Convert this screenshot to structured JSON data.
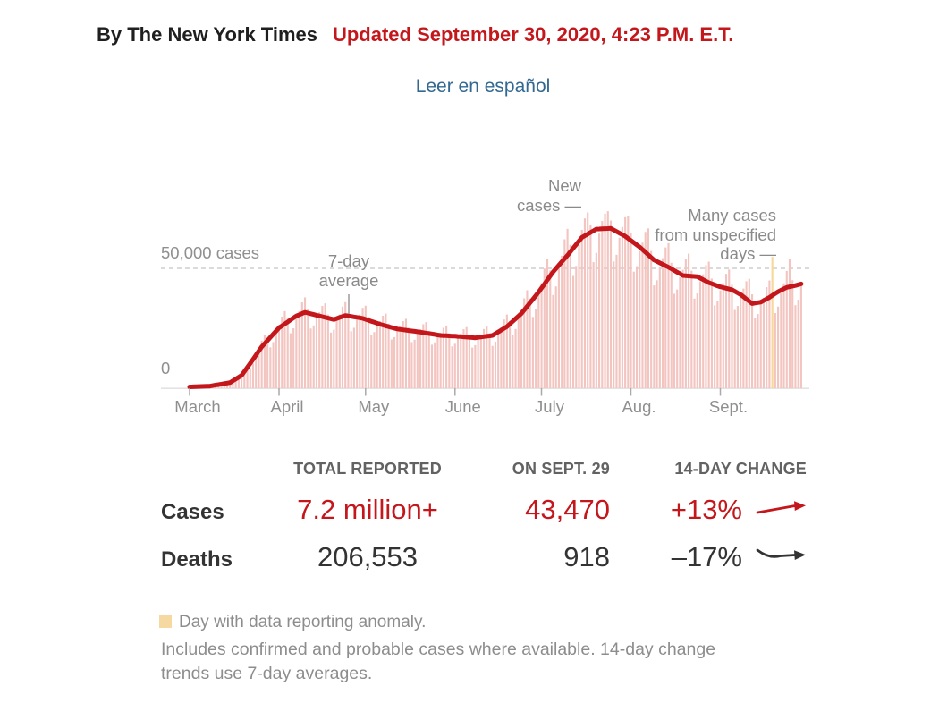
{
  "header": {
    "byline": "By The New York Times",
    "updated": "Updated September 30, 2020, 4:23 P.M. E.T.",
    "language_link": "Leer en español"
  },
  "colors": {
    "accent_red": "#c4171c",
    "bar_pink": "#f3c5c1",
    "anomaly_yellow": "#f6d89b",
    "link_blue": "#326891",
    "gray_label": "#8f8f8f"
  },
  "chart_data": {
    "type": "bar+line",
    "x_axis": {
      "tick_labels": [
        "March",
        "April",
        "May",
        "June",
        "July",
        "Aug.",
        "Sept."
      ],
      "tick_day_offsets": [
        0,
        31,
        61,
        92,
        122,
        153,
        184
      ]
    },
    "y_axis": {
      "gridline_value": 50000,
      "gridline_label": "50,000 cases",
      "baseline_label": "0",
      "y_max": 75000,
      "grid": "single dashed gridline at 50,000"
    },
    "annotations": {
      "new_cases": {
        "lines": [
          "New",
          "cases —"
        ]
      },
      "avg": {
        "lines": [
          "7-day",
          "average"
        ]
      },
      "unspecified": {
        "lines": [
          "Many cases",
          "from unspecified",
          "days —"
        ]
      }
    },
    "bar_series": {
      "name": "New cases",
      "start_label": "March",
      "end_value_reported": 43470,
      "anomaly_day_index": 202,
      "daily_values": [
        160,
        200,
        280,
        350,
        430,
        490,
        480,
        400,
        600,
        900,
        1200,
        1600,
        1900,
        1900,
        1600,
        2300,
        3400,
        4500,
        5800,
        8000,
        8700,
        8000,
        10000,
        13100,
        16000,
        19600,
        22000,
        20700,
        16800,
        19000,
        23000,
        26300,
        29700,
        32000,
        28900,
        22700,
        24800,
        29100,
        32000,
        35700,
        37800,
        32800,
        24700,
        26000,
        29400,
        31500,
        34200,
        35300,
        30600,
        23000,
        24200,
        28000,
        30600,
        33900,
        35800,
        31200,
        23600,
        25000,
        28400,
        30600,
        33400,
        34300,
        29600,
        22200,
        23200,
        26100,
        27800,
        30100,
        31000,
        26800,
        20100,
        21100,
        23800,
        25600,
        27800,
        28800,
        25000,
        19000,
        20000,
        22700,
        24400,
        26500,
        27400,
        23700,
        17900,
        18900,
        21300,
        22900,
        25000,
        26000,
        22700,
        17200,
        18300,
        20800,
        22400,
        24400,
        25300,
        22100,
        16700,
        17700,
        20300,
        22200,
        24500,
        25800,
        22700,
        17400,
        19200,
        22600,
        25200,
        28500,
        30600,
        27900,
        22200,
        24500,
        29000,
        32600,
        37400,
        40800,
        37300,
        29600,
        32700,
        38800,
        43800,
        49900,
        54100,
        49100,
        38800,
        42400,
        49800,
        55300,
        62200,
        66600,
        59900,
        46800,
        51000,
        59700,
        66200,
        71000,
        73500,
        68400,
        52600,
        56500,
        64600,
        69900,
        73000,
        74000,
        70100,
        52900,
        55700,
        62900,
        67400,
        71500,
        72000,
        64800,
        48600,
        50900,
        57200,
        60800,
        65300,
        66800,
        57300,
        42800,
        45000,
        50700,
        54300,
        58800,
        60600,
        52300,
        39300,
        41100,
        46300,
        49400,
        53900,
        56200,
        49000,
        37300,
        39500,
        44500,
        47500,
        51300,
        52800,
        45700,
        34400,
        36100,
        40700,
        43800,
        47700,
        49500,
        43100,
        32500,
        34200,
        38700,
        41500,
        44600,
        45600,
        39100,
        29200,
        30800,
        35000,
        37600,
        42100,
        44900,
        55400,
        31200,
        33900,
        39500,
        43700,
        48900,
        53800,
        45000,
        34500,
        36800,
        43470
      ]
    },
    "line_series": {
      "name": "7-day average",
      "anchor_points": [
        [
          0,
          200
        ],
        [
          7,
          500
        ],
        [
          14,
          2000
        ],
        [
          18,
          5000
        ],
        [
          21,
          10000
        ],
        [
          25,
          17000
        ],
        [
          31,
          25000
        ],
        [
          37,
          30000
        ],
        [
          40,
          31500
        ],
        [
          45,
          30000
        ],
        [
          50,
          28500
        ],
        [
          54,
          30200
        ],
        [
          60,
          29000
        ],
        [
          66,
          26500
        ],
        [
          72,
          24500
        ],
        [
          80,
          23200
        ],
        [
          87,
          21800
        ],
        [
          92,
          21500
        ],
        [
          99,
          20800
        ],
        [
          105,
          21800
        ],
        [
          110,
          25500
        ],
        [
          115,
          31000
        ],
        [
          121,
          40000
        ],
        [
          126,
          48500
        ],
        [
          131,
          55500
        ],
        [
          136,
          63000
        ],
        [
          141,
          66500
        ],
        [
          146,
          66800
        ],
        [
          151,
          63500
        ],
        [
          156,
          59000
        ],
        [
          161,
          53500
        ],
        [
          166,
          50500
        ],
        [
          171,
          47000
        ],
        [
          176,
          46500
        ],
        [
          180,
          44000
        ],
        [
          184,
          42200
        ],
        [
          188,
          41000
        ],
        [
          191,
          39000
        ],
        [
          195,
          35200
        ],
        [
          198,
          35800
        ],
        [
          201,
          37800
        ],
        [
          204,
          40200
        ],
        [
          207,
          42000
        ],
        [
          210,
          42800
        ],
        [
          212,
          43470
        ]
      ]
    }
  },
  "stats": {
    "column_headers": [
      "TOTAL REPORTED",
      "ON SEPT. 29",
      "14-DAY CHANGE"
    ],
    "rows": [
      {
        "label": "Cases",
        "total_reported": "7.2 million+",
        "on_date": "43,470",
        "change": "+13%",
        "trend": "up"
      },
      {
        "label": "Deaths",
        "total_reported": "206,553",
        "on_date": "918",
        "change": "–17%",
        "trend": "down"
      }
    ]
  },
  "legend": {
    "anomaly_label": "Day with data reporting anomaly."
  },
  "footnote": {
    "lines": [
      "Includes confirmed and probable cases where available. 14-day change",
      "trends use 7-day averages."
    ]
  }
}
